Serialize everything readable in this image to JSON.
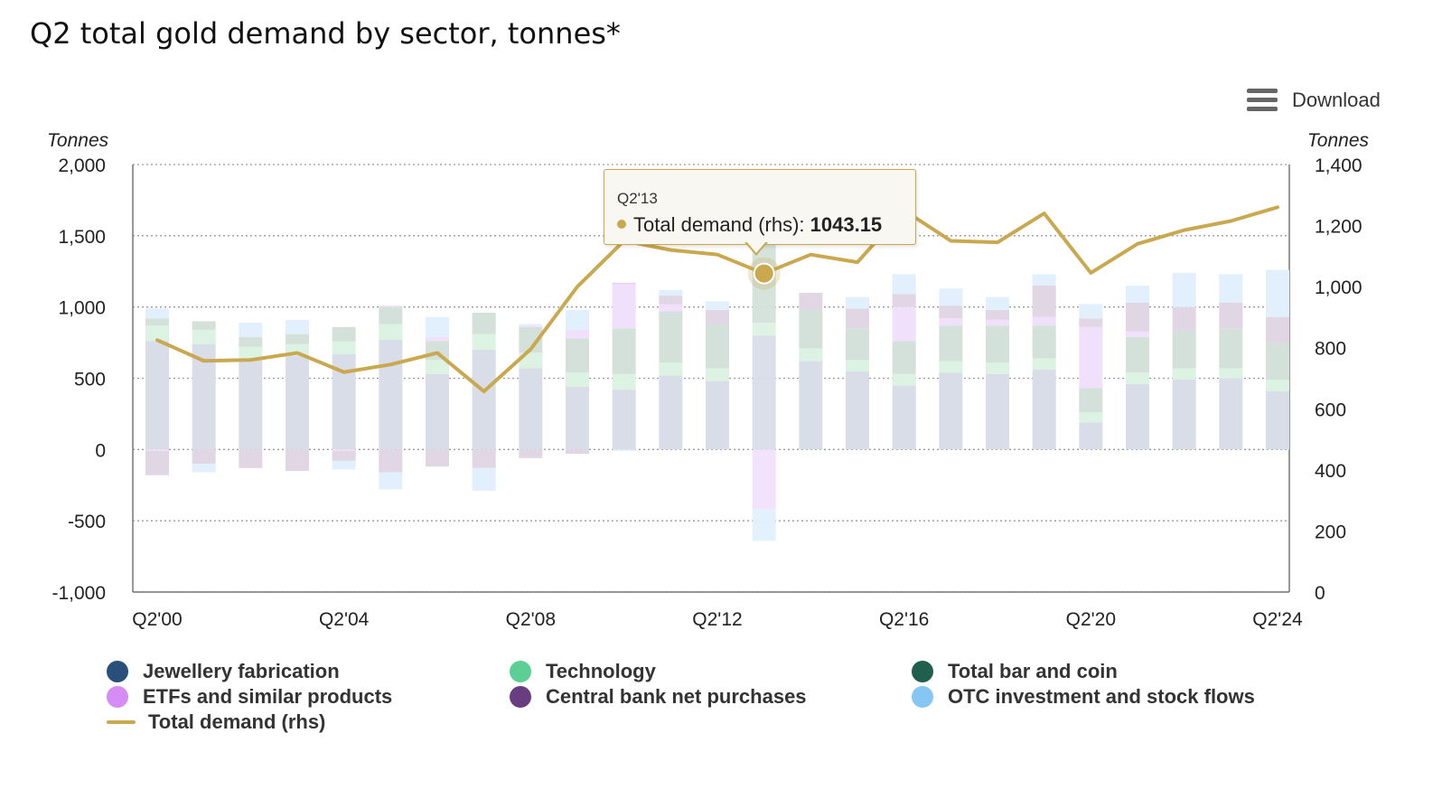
{
  "chart_data": {
    "type": "bar",
    "stacked": true,
    "title": "Q2 total gold demand by sector, tonnes*",
    "ylabel_left": "Tonnes",
    "ylabel_right": "Tonnes",
    "ylim_left": [
      -1000,
      2000
    ],
    "ylim_right": [
      0,
      1400
    ],
    "yticks_left": [
      "2,000",
      "1,500",
      "1,000",
      "500",
      "0",
      "-500",
      "-1,000"
    ],
    "yticks_right": [
      "1,400",
      "1,200",
      "1,000",
      "800",
      "600",
      "400",
      "200",
      "0"
    ],
    "x_tick_labels": [
      "Q2'00",
      "Q2'04",
      "Q2'08",
      "Q2'12",
      "Q2'16",
      "Q2'20",
      "Q2'24"
    ],
    "categories": [
      "Q2'00",
      "Q2'01",
      "Q2'02",
      "Q2'03",
      "Q2'04",
      "Q2'05",
      "Q2'06",
      "Q2'07",
      "Q2'08",
      "Q2'09",
      "Q2'10",
      "Q2'11",
      "Q2'12",
      "Q2'13",
      "Q2'14",
      "Q2'15",
      "Q2'16",
      "Q2'17",
      "Q2'18",
      "Q2'19",
      "Q2'20",
      "Q2'21",
      "Q2'22",
      "Q2'23",
      "Q2'24"
    ],
    "series": [
      {
        "name": "Jewellery fabrication",
        "color": "#2b4f7d",
        "axis": "left",
        "values": [
          760,
          740,
          640,
          660,
          670,
          770,
          530,
          700,
          570,
          440,
          420,
          520,
          480,
          800,
          620,
          550,
          450,
          540,
          530,
          560,
          190,
          460,
          490,
          500,
          410
        ]
      },
      {
        "name": "Technology",
        "color": "#5ccf94",
        "axis": "left",
        "values": [
          110,
          100,
          80,
          80,
          90,
          110,
          100,
          110,
          110,
          100,
          110,
          90,
          90,
          90,
          90,
          80,
          80,
          80,
          80,
          80,
          70,
          80,
          80,
          70,
          80
        ]
      },
      {
        "name": "Total bar and coin",
        "color": "#1f5f4c",
        "axis": "left",
        "values": [
          50,
          60,
          70,
          70,
          100,
          120,
          130,
          150,
          180,
          240,
          320,
          360,
          310,
          800,
          270,
          220,
          230,
          250,
          260,
          230,
          170,
          250,
          260,
          280,
          260
        ]
      },
      {
        "name": "ETFs and similar products",
        "color": "#d58cf5",
        "axis": "left",
        "values": [
          -10,
          0,
          0,
          0,
          -10,
          10,
          30,
          0,
          10,
          60,
          310,
          50,
          0,
          -420,
          0,
          0,
          240,
          50,
          40,
          60,
          430,
          40,
          0,
          0,
          0
        ]
      },
      {
        "name": "Central bank net purchases",
        "color": "#6a3d80",
        "axis": "left",
        "values": [
          -170,
          -100,
          -130,
          -150,
          -70,
          -160,
          -120,
          -130,
          -60,
          -30,
          10,
          60,
          100,
          80,
          120,
          140,
          90,
          90,
          70,
          220,
          60,
          200,
          170,
          180,
          180
        ]
      },
      {
        "name": "OTC investment and stock flows",
        "color": "#86c6f5",
        "axis": "left",
        "values": [
          70,
          -60,
          100,
          100,
          -60,
          -120,
          140,
          -160,
          10,
          140,
          -10,
          40,
          60,
          -220,
          0,
          80,
          140,
          120,
          90,
          80,
          100,
          120,
          240,
          200,
          330
        ]
      }
    ],
    "line": {
      "name": "Total demand (rhs)",
      "color": "#c9a84f",
      "axis": "right",
      "values": [
        825,
        757,
        760,
        783,
        720,
        745,
        783,
        657,
        795,
        1000,
        1150,
        1120,
        1105,
        1043.15,
        1105,
        1080,
        1250,
        1150,
        1145,
        1240,
        1045,
        1140,
        1185,
        1215,
        1260
      ]
    },
    "highlight_index": 13,
    "legend_position": "bottom"
  },
  "ui": {
    "title": "Q2 total gold demand by sector, tonnes*",
    "download_label": "Download",
    "download_icon": "hamburger-menu-icon",
    "tooltip": {
      "period": "Q2'13",
      "series_label": "Total demand (rhs): ",
      "value": "1043.15"
    }
  },
  "legend": [
    {
      "label": "Jewellery fabrication",
      "color": "#2b4f7d",
      "marker": "dot"
    },
    {
      "label": "Technology",
      "color": "#5ccf94",
      "marker": "dot"
    },
    {
      "label": "Total bar and coin",
      "color": "#1f5f4c",
      "marker": "dot"
    },
    {
      "label": "ETFs and similar products",
      "color": "#d58cf5",
      "marker": "dot"
    },
    {
      "label": "Central bank net purchases",
      "color": "#6a3d80",
      "marker": "dot"
    },
    {
      "label": "OTC investment and stock flows",
      "color": "#86c6f5",
      "marker": "dot"
    },
    {
      "label": "Total demand (rhs)",
      "color": "#c9a84f",
      "marker": "line"
    }
  ]
}
